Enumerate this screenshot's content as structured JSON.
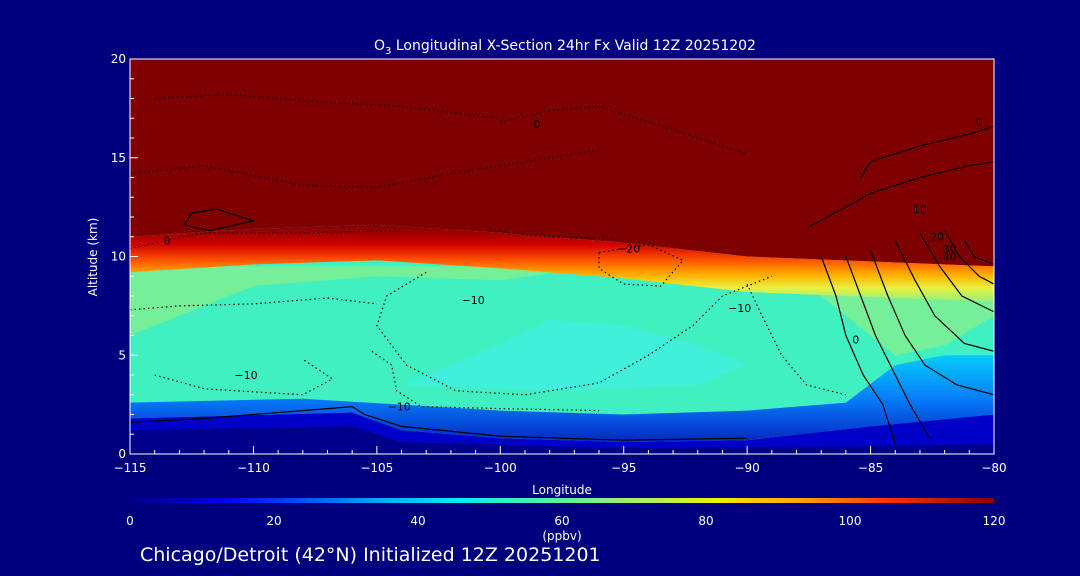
{
  "chart_data": {
    "type": "heatmap",
    "title_prefix": "O",
    "title_subscript": "3",
    "title_rest": " Longitudinal X-Section 24hr  Fx Valid 12Z 20251202",
    "xlabel": "Longitude",
    "ylabel": "Altitude (km)",
    "xlim": [
      -115,
      -80
    ],
    "ylim": [
      0,
      20
    ],
    "x_ticks": [
      -115,
      -110,
      -105,
      -100,
      -95,
      -90,
      -85,
      -80
    ],
    "x_tick_labels": [
      "−115",
      "−110",
      "−105",
      "−100",
      "−95",
      "−90",
      "−85",
      "−80"
    ],
    "y_ticks": [
      0,
      5,
      10,
      15,
      20
    ],
    "y_tick_labels": [
      "0",
      "5",
      "10",
      "15",
      "20"
    ],
    "grid": false,
    "colorbar": {
      "ticks": [
        0,
        20,
        40,
        60,
        80,
        100,
        120
      ],
      "tick_labels": [
        "0",
        "20",
        "40",
        "60",
        "80",
        "100",
        "120"
      ],
      "label": "(ppbv)",
      "range": [
        0,
        120
      ]
    },
    "field_description": {
      "tropopause_km_at_lon": [
        [
          -115,
          10.8
        ],
        [
          -110,
          11.2
        ],
        [
          -105,
          11.4
        ],
        [
          -100,
          11.0
        ],
        [
          -95,
          10.5
        ],
        [
          -90,
          9.8
        ],
        [
          -86,
          9.6
        ],
        [
          -80,
          9.3
        ]
      ],
      "surface_layer_top_km": [
        [
          -115,
          1.8
        ],
        [
          -106,
          2.1
        ],
        [
          -104,
          1.2
        ],
        [
          -100,
          0.8
        ],
        [
          -95,
          0.6
        ],
        [
          -90,
          0.7
        ],
        [
          -85,
          1.4
        ],
        [
          -80,
          2.0
        ]
      ]
    },
    "contour_labels": [
      {
        "text": "0",
        "lon": -113.5,
        "alt": 10.6
      },
      {
        "text": "0",
        "lon": -98.5,
        "alt": 16.5
      },
      {
        "text": "0",
        "lon": -80.6,
        "alt": 16.6
      },
      {
        "text": "−20",
        "lon": -94.8,
        "alt": 10.2
      },
      {
        "text": "−10",
        "lon": -101.1,
        "alt": 7.6
      },
      {
        "text": "−10",
        "lon": -90.3,
        "alt": 7.2
      },
      {
        "text": "−10",
        "lon": -110.3,
        "alt": 3.8
      },
      {
        "text": "−10",
        "lon": -104.1,
        "alt": 2.2
      },
      {
        "text": "10",
        "lon": -83.0,
        "alt": 12.2
      },
      {
        "text": "20",
        "lon": -82.3,
        "alt": 10.8
      },
      {
        "text": "30",
        "lon": -81.8,
        "alt": 10.2
      },
      {
        "text": "40",
        "lon": -81.8,
        "alt": 9.8
      },
      {
        "text": "0",
        "lon": -85.6,
        "alt": 5.6
      }
    ]
  },
  "caption": "Chicago/Detroit (42°N) Initialized 12Z 20251201",
  "colors": {
    "background": "#00007f",
    "text": "#ffffff",
    "stratosphere": "#7f0000"
  }
}
